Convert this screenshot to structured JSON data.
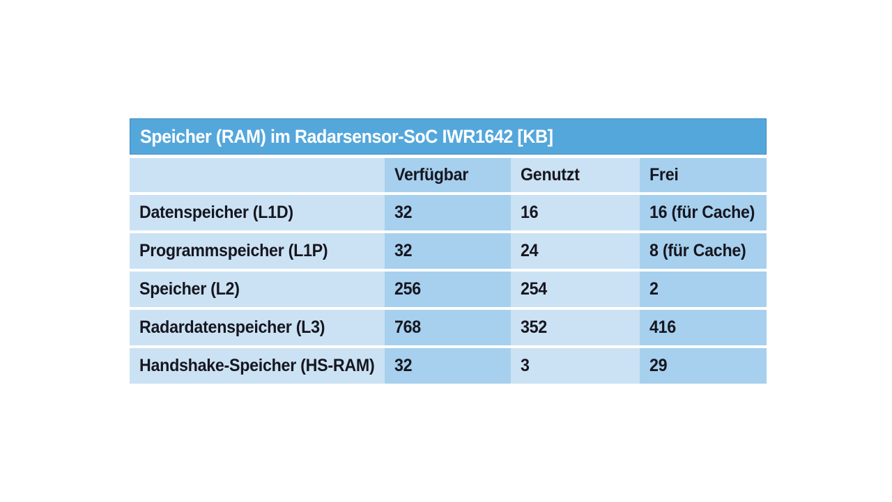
{
  "table": {
    "title": "Speicher (RAM) im Radarsensor-SoC IWR1642 [KB]",
    "columns": [
      "",
      "Verfügbar",
      "Genutzt",
      "Frei"
    ],
    "rows": [
      {
        "label": "Datenspeicher (L1D)",
        "verfuegbar": "32",
        "genutzt": "16",
        "frei": "16 (für Cache)"
      },
      {
        "label": "Programmspeicher (L1P)",
        "verfuegbar": "32",
        "genutzt": "24",
        "frei": "8 (für Cache)"
      },
      {
        "label": "Speicher (L2)",
        "verfuegbar": "256",
        "genutzt": "254",
        "frei": "2"
      },
      {
        "label": "Radardatenspeicher (L3)",
        "verfuegbar": "768",
        "genutzt": "352",
        "frei": "416"
      },
      {
        "label": "Handshake-Speicher (HS-RAM)",
        "verfuegbar": "32",
        "genutzt": "3",
        "frei": "29"
      }
    ],
    "colors": {
      "title_bar": "#54a7db",
      "title_text": "#ffffff",
      "cell_light": "#cbe2f4",
      "cell_dark": "#a6d0ee",
      "body_text": "#16161f",
      "separator": "#ffffff"
    }
  },
  "chart_data": {
    "type": "table",
    "title": "Speicher (RAM) im Radarsensor-SoC IWR1642 [KB]",
    "unit": "KB",
    "columns": [
      "",
      "Verfügbar",
      "Genutzt",
      "Frei"
    ],
    "rows": [
      [
        "Datenspeicher (L1D)",
        "32",
        "16",
        "16 (für Cache)"
      ],
      [
        "Programmspeicher (L1P)",
        "32",
        "24",
        "8 (für Cache)"
      ],
      [
        "Speicher (L2)",
        "256",
        "254",
        "2"
      ],
      [
        "Radardatenspeicher (L3)",
        "768",
        "352",
        "416"
      ],
      [
        "Handshake-Speicher (HS-RAM)",
        "32",
        "3",
        "29"
      ]
    ]
  }
}
